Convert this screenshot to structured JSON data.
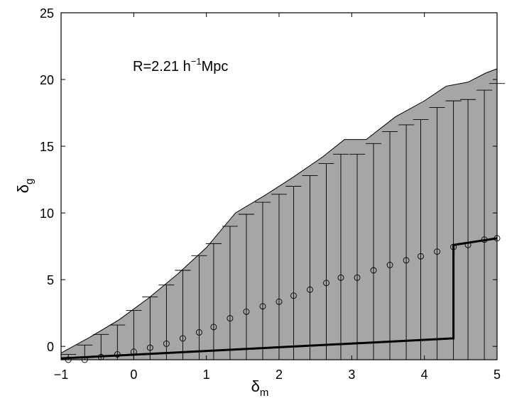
{
  "chart_data": {
    "type": "scatter",
    "xlabel": "δ",
    "xlabel_sub": "m",
    "ylabel": "δ",
    "ylabel_sub": "g",
    "xlim": [
      -1,
      5
    ],
    "ylim": [
      -1,
      25
    ],
    "xticks": [
      -1,
      0,
      1,
      2,
      3,
      4,
      5
    ],
    "yticks": [
      0,
      5,
      10,
      15,
      20,
      25
    ],
    "xtick_labels": [
      "−1",
      "0",
      "1",
      "2",
      "3",
      "4",
      "5"
    ],
    "ytick_labels": [
      "0",
      "5",
      "10",
      "15",
      "20",
      "25"
    ],
    "annotation": {
      "prefix": "R=2.21 h",
      "sup": "−1",
      "suffix": "Mpc"
    },
    "grid": false,
    "legend": "none",
    "colors": {
      "band_fill": "#a6a6a6",
      "marker": "#000000",
      "line": "#000000"
    },
    "band": {
      "description": "shaded region",
      "x": [
        -1.0,
        -0.6,
        -0.2,
        0.2,
        0.6,
        1.0,
        1.4,
        1.8,
        2.2,
        2.6,
        2.9,
        3.2,
        3.6,
        4.0,
        4.3,
        4.6,
        4.85,
        5.0
      ],
      "upper": [
        -0.5,
        0.7,
        2.0,
        3.6,
        5.4,
        7.4,
        10.0,
        11.3,
        12.7,
        14.2,
        15.5,
        15.5,
        17.2,
        18.4,
        19.5,
        19.8,
        20.5,
        20.8
      ],
      "lower": -1
    },
    "series": [
      {
        "kind": "points_with_upper_bars",
        "x": [
          -0.9,
          -0.675,
          -0.45,
          -0.225,
          0.0,
          0.225,
          0.45,
          0.675,
          0.9,
          1.1,
          1.325,
          1.55,
          1.775,
          2.0,
          2.2,
          2.425,
          2.65,
          2.85,
          3.075,
          3.3,
          3.525,
          3.75,
          3.95,
          4.175,
          4.4,
          4.6,
          4.825,
          5.0
        ],
        "y": [
          -1.0,
          -1.0,
          -0.8,
          -0.6,
          -0.4,
          -0.1,
          0.2,
          0.6,
          1.05,
          1.45,
          2.1,
          2.6,
          3.0,
          3.35,
          3.8,
          4.25,
          4.75,
          5.15,
          5.15,
          5.7,
          6.1,
          6.45,
          6.75,
          7.1,
          7.45,
          7.6,
          8.0,
          8.1
        ],
        "upper": [
          -0.6,
          0.1,
          0.9,
          1.6,
          2.7,
          3.7,
          4.6,
          5.7,
          6.8,
          7.7,
          9.0,
          9.9,
          10.8,
          11.4,
          12.0,
          12.8,
          13.7,
          14.4,
          14.4,
          15.2,
          16.1,
          16.6,
          17.0,
          17.9,
          18.4,
          18.5,
          19.2,
          19.7
        ]
      },
      {
        "kind": "line",
        "x": [
          -1.0,
          4.4,
          4.4,
          5.0
        ],
        "y": [
          -0.9,
          0.6,
          7.6,
          8.1
        ]
      }
    ]
  }
}
